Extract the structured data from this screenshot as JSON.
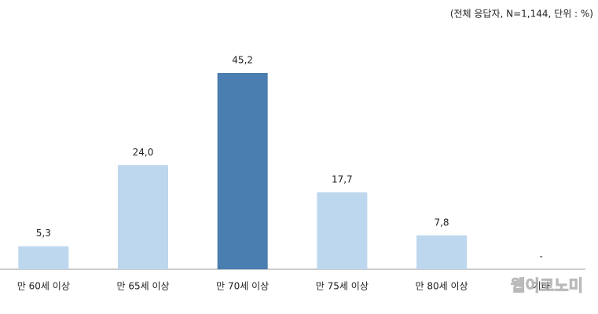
{
  "chart_data": {
    "type": "bar",
    "subtitle": "(전체 응답자, N=1,144, 단위 : %)",
    "categories": [
      "만 60세 이상",
      "만 65세 이상",
      "만 70세 이상",
      "만 75세 이상",
      "만 80세 이상",
      "기타"
    ],
    "values": [
      5.3,
      24.0,
      45.2,
      17.7,
      7.8,
      null
    ],
    "value_labels": [
      "5,3",
      "24,0",
      "45,2",
      "17,7",
      "7,8",
      "-"
    ],
    "colors": [
      "#bdd7ee",
      "#bdd7ee",
      "#4a7eb0",
      "#bdd7ee",
      "#bdd7ee",
      "#bdd7ee"
    ],
    "watermark": "웹이코노미"
  }
}
